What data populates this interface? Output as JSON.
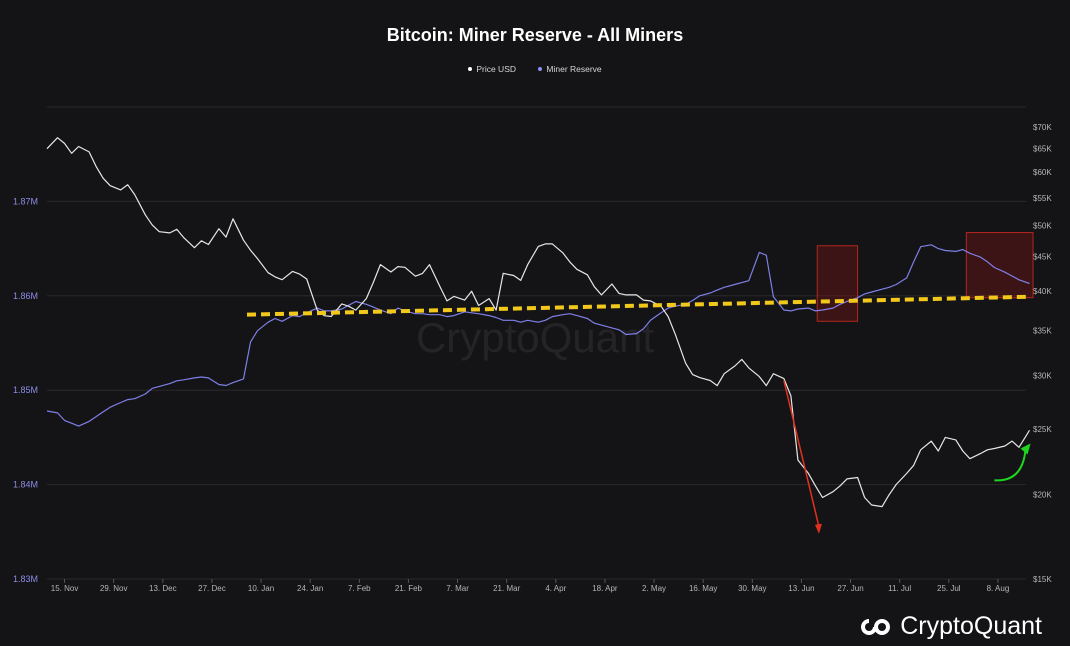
{
  "title": "Bitcoin: Miner Reserve - All Miners",
  "legend": [
    {
      "label": "Price USD",
      "color": "#ffffff"
    },
    {
      "label": "Miner Reserve",
      "color": "#8a8ff0"
    }
  ],
  "watermark": "CryptoQuant",
  "brand": {
    "name": "CryptoQuant",
    "icon": "cryptoquant-logo-icon"
  },
  "colors": {
    "background": "#141416",
    "price_line": "#e6e6e6",
    "reserve_line": "#7f7fe8",
    "trend_line": "#f2c91a",
    "down_arrow": "#e0311e",
    "up_arrow": "#1fd61f",
    "highlight_box": "#8a1414"
  },
  "chart_data": {
    "type": "line",
    "title": "Bitcoin: Miner Reserve - All Miners",
    "x_tick_labels": [
      "15. Nov",
      "29. Nov",
      "13. Dec",
      "27. Dec",
      "10. Jan",
      "24. Jan",
      "7. Feb",
      "21. Feb",
      "7. Mar",
      "21. Mar",
      "4. Apr",
      "18. Apr",
      "2. May",
      "16. May",
      "30. May",
      "13. Jun",
      "27. Jun",
      "11. Jul",
      "25. Jul",
      "8. Aug"
    ],
    "x_range": [
      "2021-11-10",
      "2022-08-16"
    ],
    "left_axis": {
      "name": "Miner Reserve",
      "ticks": [
        "1.83M",
        "1.84M",
        "1.85M",
        "1.86M",
        "1.87M"
      ],
      "ylim": [
        1830000,
        1880000
      ]
    },
    "right_axis": {
      "name": "Price USD",
      "scale": "log",
      "ticks": [
        "$15K",
        "$20K",
        "$25K",
        "$30K",
        "$35K",
        "$40K",
        "$45K",
        "$50K",
        "$55K",
        "$60K",
        "$65K",
        "$70K"
      ],
      "ylim": [
        15000,
        70000
      ]
    },
    "grid": true,
    "legend_position": "top-center",
    "series": [
      {
        "name": "Price USD",
        "axis": "right",
        "x": [
          0,
          3,
          5,
          7,
          9,
          12,
          14,
          16,
          18,
          21,
          23,
          25,
          28,
          30,
          32,
          35,
          37,
          39,
          42,
          44,
          46,
          49,
          51,
          53,
          56,
          58,
          60,
          63,
          65,
          67,
          70,
          72,
          74,
          77,
          79,
          81,
          84,
          86,
          88,
          91,
          93,
          95,
          98,
          100,
          102,
          105,
          107,
          109,
          112,
          114,
          116,
          119,
          121,
          123,
          126,
          128,
          130,
          133,
          135,
          137,
          140,
          142,
          144,
          147,
          149,
          151,
          154,
          156,
          158,
          161,
          163,
          165,
          168,
          170,
          172,
          175,
          177,
          179,
          182,
          184,
          186,
          189,
          191,
          193,
          196,
          198,
          200,
          203,
          205,
          207,
          210,
          212,
          214,
          217,
          219,
          221,
          224,
          226,
          228,
          231,
          233,
          235,
          238,
          240,
          242,
          245,
          247,
          249,
          252,
          254,
          256,
          259,
          261,
          263,
          266,
          268,
          270,
          273,
          275,
          277,
          280
        ],
        "values": [
          65000,
          67500,
          66200,
          64000,
          65500,
          64300,
          61200,
          58800,
          57300,
          56500,
          57500,
          55600,
          51900,
          50100,
          49000,
          48800,
          49400,
          48000,
          46400,
          47500,
          46900,
          49500,
          48100,
          51200,
          47600,
          46000,
          44700,
          42600,
          42000,
          41600,
          42800,
          42400,
          41700,
          37500,
          36800,
          36700,
          38300,
          38000,
          37500,
          39000,
          41200,
          43800,
          42700,
          43500,
          43400,
          42100,
          42500,
          43800,
          40600,
          38700,
          39300,
          38800,
          40000,
          38100,
          39000,
          37500,
          42500,
          42200,
          41500,
          43800,
          46600,
          47000,
          47000,
          45600,
          44200,
          43100,
          42300,
          40600,
          39500,
          41000,
          39700,
          39500,
          39500,
          38800,
          38700,
          38000,
          36700,
          34600,
          31300,
          30100,
          29800,
          29500,
          29000,
          30200,
          31000,
          31700,
          30800,
          29900,
          29000,
          30200,
          29700,
          28000,
          22500,
          21500,
          20600,
          19800,
          20200,
          20600,
          21100,
          21200,
          19800,
          19300,
          19200,
          20000,
          20700,
          21500,
          22100,
          23300,
          24000,
          23200,
          24300,
          24100,
          23200,
          22600,
          23000,
          23300,
          23400,
          23600,
          24000,
          23500,
          24900
        ]
      },
      {
        "name": "Miner Reserve",
        "axis": "left",
        "x": [
          0,
          3,
          5,
          7,
          9,
          12,
          14,
          16,
          18,
          21,
          23,
          25,
          28,
          30,
          32,
          35,
          37,
          39,
          42,
          44,
          46,
          49,
          51,
          53,
          56,
          58,
          60,
          63,
          65,
          67,
          70,
          72,
          74,
          77,
          79,
          81,
          84,
          86,
          88,
          91,
          93,
          95,
          98,
          100,
          102,
          105,
          107,
          109,
          112,
          114,
          116,
          119,
          121,
          123,
          126,
          128,
          130,
          133,
          135,
          137,
          140,
          142,
          144,
          147,
          149,
          151,
          154,
          156,
          158,
          161,
          163,
          165,
          168,
          170,
          172,
          175,
          177,
          179,
          182,
          184,
          186,
          189,
          191,
          193,
          196,
          198,
          200,
          203,
          205,
          207,
          210,
          212,
          214,
          217,
          219,
          221,
          224,
          226,
          228,
          231,
          233,
          235,
          238,
          240,
          242,
          245,
          247,
          249,
          252,
          254,
          256,
          259,
          261,
          263,
          266,
          268,
          270,
          273,
          275,
          277,
          280
        ],
        "values": [
          1847800,
          1847600,
          1846800,
          1846500,
          1846200,
          1846700,
          1847200,
          1847700,
          1848200,
          1848700,
          1849000,
          1849100,
          1849600,
          1850200,
          1850400,
          1850700,
          1851000,
          1851100,
          1851300,
          1851400,
          1851300,
          1850600,
          1850500,
          1850800,
          1851200,
          1855100,
          1856300,
          1857200,
          1857600,
          1857300,
          1857900,
          1857800,
          1858200,
          1858700,
          1858400,
          1858400,
          1858600,
          1859000,
          1859400,
          1859100,
          1858800,
          1858500,
          1858100,
          1858700,
          1858400,
          1858100,
          1858100,
          1858000,
          1858000,
          1857800,
          1857900,
          1858300,
          1858200,
          1858100,
          1857900,
          1857700,
          1857400,
          1857400,
          1857200,
          1857400,
          1857200,
          1857400,
          1857800,
          1858000,
          1858100,
          1857900,
          1857600,
          1857100,
          1856900,
          1856600,
          1856400,
          1855900,
          1856000,
          1856500,
          1857400,
          1858200,
          1858700,
          1858900,
          1859100,
          1859500,
          1860000,
          1860300,
          1860600,
          1860900,
          1861200,
          1861400,
          1861600,
          1864600,
          1864300,
          1859900,
          1858500,
          1858400,
          1858600,
          1858700,
          1858400,
          1858500,
          1858700,
          1859100,
          1859400,
          1859800,
          1860200,
          1860400,
          1860700,
          1860900,
          1861200,
          1861900,
          1863600,
          1865200,
          1865400,
          1865000,
          1864800,
          1864700,
          1864900,
          1864500,
          1864100,
          1863600,
          1863000,
          1862500,
          1862100,
          1861700,
          1861300
        ]
      }
    ],
    "annotations": {
      "trend_line": {
        "style": "dashed",
        "color": "yellow",
        "x": [
          57,
          280
        ],
        "miner_reserve": [
          1858000,
          1859900
        ]
      },
      "red_arrow": {
        "x": [
          210,
          220
        ],
        "price_usd": [
          29500,
          17500
        ]
      },
      "green_arrow": {
        "x": [
          270,
          280
        ],
        "price_usd": [
          21000,
          23800
        ]
      },
      "highlight_boxes": [
        {
          "x": [
            219.5,
            231
          ],
          "miner_reserve": [
            1857300,
            1865300
          ]
        },
        {
          "x": [
            262,
            281
          ],
          "miner_reserve": [
            1859800,
            1866700
          ]
        }
      ]
    }
  }
}
